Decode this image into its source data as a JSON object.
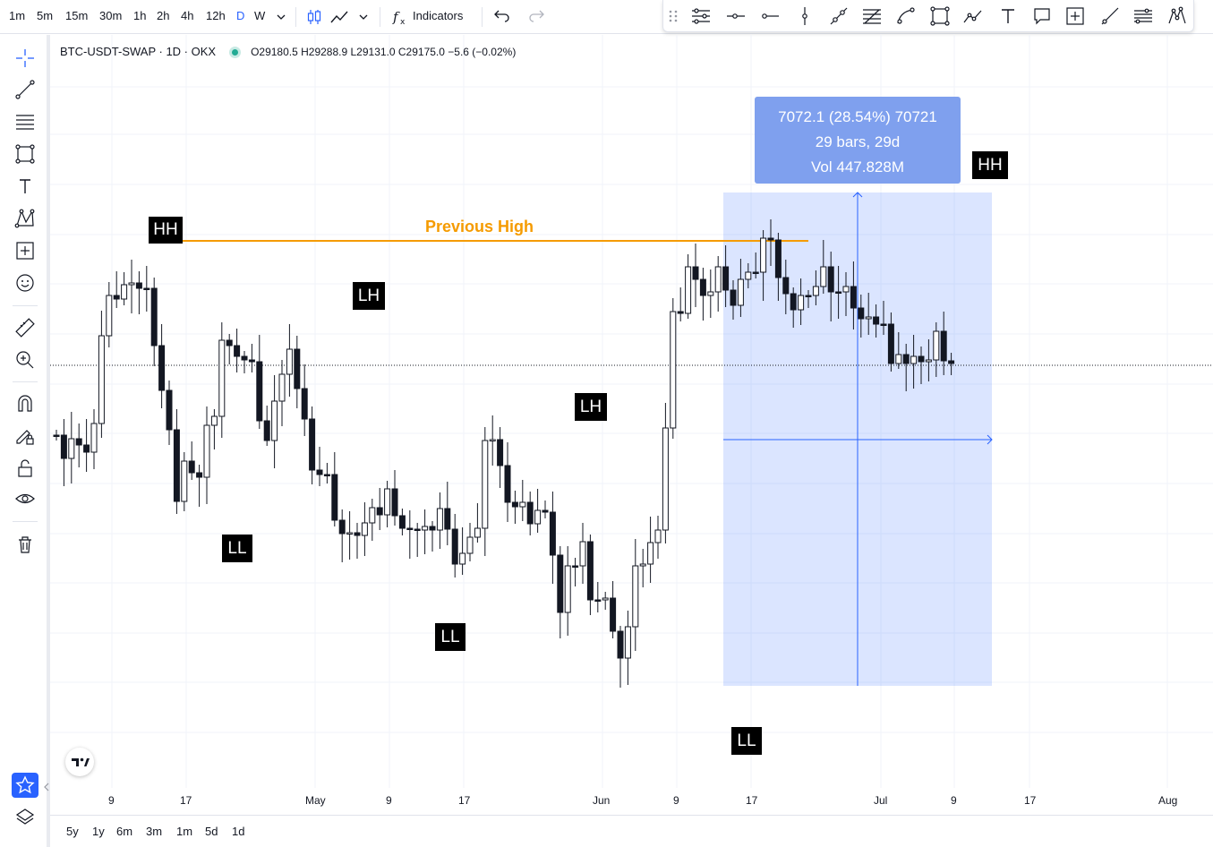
{
  "timeframes": [
    "1m",
    "5m",
    "15m",
    "30m",
    "1h",
    "2h",
    "4h",
    "12h",
    "D",
    "W"
  ],
  "active_timeframe": "D",
  "toolbar": {
    "indicators_label": "Indicators"
  },
  "legend": {
    "symbol": "BTC-USDT-SWAP · 1D · OKX",
    "ohlc": "O29180.5 H29288.9 L29131.0 C29175.0 −5.6 (−0.02%)"
  },
  "labels": {
    "previous_high": "Previous High",
    "markers": [
      "HH",
      "LL",
      "LH",
      "LL",
      "LH",
      "LL",
      "HH"
    ]
  },
  "measure_box": {
    "line1": "7072.1 (28.54%) 70721",
    "line2": "29 bars, 29d",
    "line3": "Vol 447.828M"
  },
  "x_ticks": [
    "9",
    "17",
    "May",
    "9",
    "17",
    "Jun",
    "9",
    "17",
    "Jul",
    "9",
    "17",
    "Aug"
  ],
  "ranges": [
    "5y",
    "1y",
    "6m",
    "3m",
    "1m",
    "5d",
    "1d"
  ],
  "colors": {
    "accent": "#2962ff",
    "previous_high": "#f59b00",
    "measure_fill": "#dbe4fb",
    "label_bg": "#000000"
  },
  "icons": {
    "top": [
      "candles-icon",
      "line-chart-icon",
      "chevron-down-icon",
      "fx-icon",
      "undo-icon",
      "redo-icon"
    ],
    "draw": [
      "drag-handle-icon",
      "parallel-lines-icon",
      "horizontal-ray-icon",
      "horizontal-line-icon",
      "vertical-line-icon",
      "trend-line-icon",
      "pitchfork-icon",
      "curve-icon",
      "rectangle-icon",
      "path-icon",
      "text-icon",
      "callout-icon",
      "crosshair-box-icon",
      "ray-icon",
      "fib-icon",
      "pattern-icon"
    ],
    "left": [
      "crosshair-icon",
      "trend-line-icon",
      "fib-retracement-icon",
      "rectangle-icon",
      "text-icon",
      "pattern-icon",
      "measure-box-icon",
      "emoji-icon",
      "ruler-icon",
      "zoom-in-icon",
      "magnet-icon",
      "lock-drawing-icon",
      "lock-icon",
      "eye-icon",
      "trash-icon",
      "star-icon",
      "layers-icon"
    ]
  }
}
